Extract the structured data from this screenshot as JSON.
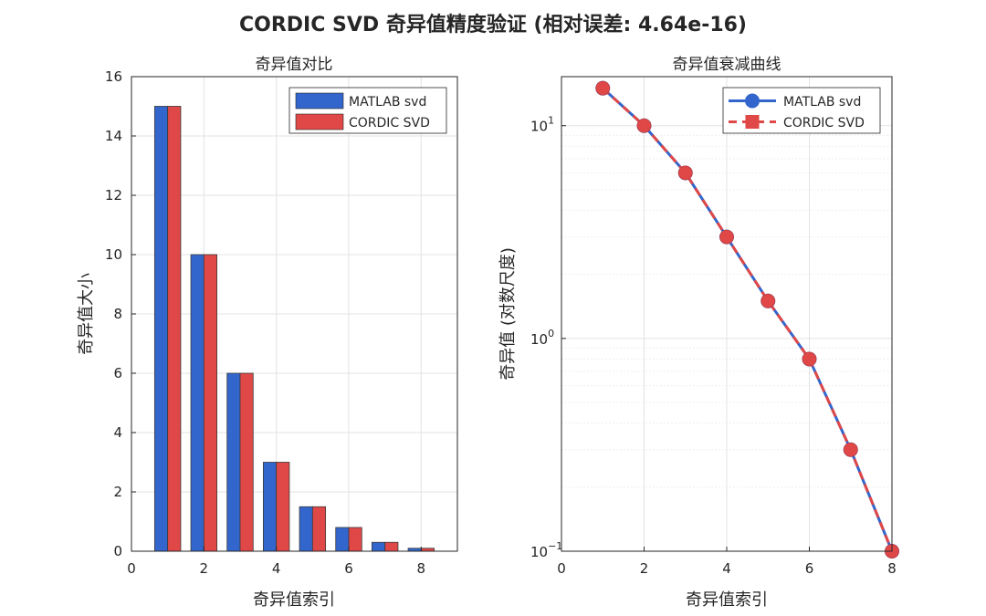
{
  "figure": {
    "suptitle": "CORDIC SVD 奇异值精度验证 (相对误差: 4.64e-16)"
  },
  "chart_data": [
    {
      "type": "bar",
      "title": "奇异值对比",
      "xlabel": "奇异值索引",
      "ylabel": "奇异值大小",
      "xlim": [
        0,
        9
      ],
      "ylim": [
        0,
        16
      ],
      "xticks": [
        0,
        2,
        4,
        6,
        8
      ],
      "yticks": [
        0,
        2,
        4,
        6,
        8,
        10,
        12,
        14,
        16
      ],
      "grid": true,
      "legend_position": "top-right",
      "x": [
        1,
        2,
        3,
        4,
        5,
        6,
        7,
        8
      ],
      "series": [
        {
          "name": "MATLAB svd",
          "color": "#3366cc",
          "values": [
            15,
            10,
            6,
            3,
            1.5,
            0.8,
            0.3,
            0.1
          ]
        },
        {
          "name": "CORDIC SVD",
          "color": "#e04848",
          "values": [
            15,
            10,
            6,
            3,
            1.5,
            0.8,
            0.3,
            0.1
          ]
        }
      ]
    },
    {
      "type": "line",
      "title": "奇异值衰减曲线",
      "xlabel": "奇异值索引",
      "ylabel": "奇异值 (对数尺度)",
      "yscale": "log",
      "xlim": [
        0,
        8
      ],
      "ylim": [
        0.1,
        17
      ],
      "xticks": [
        0,
        2,
        4,
        6,
        8
      ],
      "yticks": [
        0.1,
        1,
        10
      ],
      "grid": true,
      "legend_position": "top-right",
      "x": [
        1,
        2,
        3,
        4,
        5,
        6,
        7,
        8
      ],
      "series": [
        {
          "name": "MATLAB svd",
          "color": "#3366cc",
          "marker": "circle",
          "line": "solid",
          "values": [
            15,
            10,
            6,
            3,
            1.5,
            0.8,
            0.3,
            0.1
          ]
        },
        {
          "name": "CORDIC SVD",
          "color": "#e04848",
          "marker": "square",
          "line": "dashed",
          "values": [
            15,
            10,
            6,
            3,
            1.5,
            0.8,
            0.3,
            0.1
          ]
        }
      ]
    }
  ]
}
